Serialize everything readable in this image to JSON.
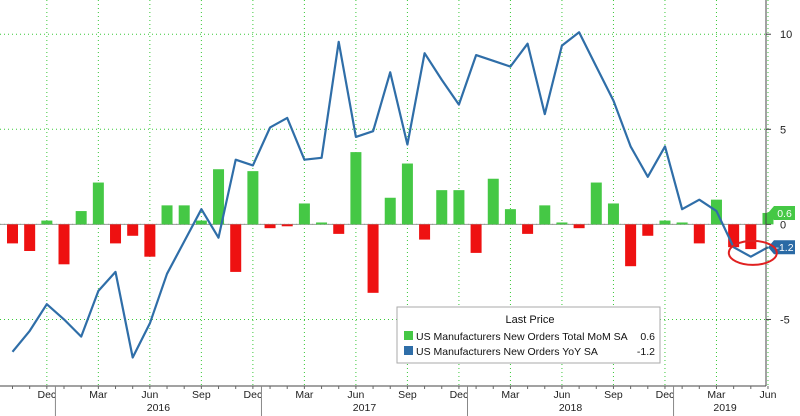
{
  "chart_data": {
    "type": "bar+line",
    "x": [
      "2015-10",
      "2015-11",
      "2015-12",
      "2016-01",
      "2016-02",
      "2016-03",
      "2016-04",
      "2016-05",
      "2016-06",
      "2016-07",
      "2016-08",
      "2016-09",
      "2016-10",
      "2016-11",
      "2016-12",
      "2017-01",
      "2017-02",
      "2017-03",
      "2017-04",
      "2017-05",
      "2017-06",
      "2017-07",
      "2017-08",
      "2017-09",
      "2017-10",
      "2017-11",
      "2017-12",
      "2018-01",
      "2018-02",
      "2018-03",
      "2018-04",
      "2018-05",
      "2018-06",
      "2018-07",
      "2018-08",
      "2018-09",
      "2018-10",
      "2018-11",
      "2018-12",
      "2019-01",
      "2019-02",
      "2019-03",
      "2019-04",
      "2019-05",
      "2019-06"
    ],
    "series": [
      {
        "name": "US Manufacturers New Orders Total MoM SA",
        "type": "bar",
        "values": [
          -1.0,
          -1.4,
          0.2,
          -2.1,
          0.7,
          2.2,
          -1.0,
          -0.6,
          -1.7,
          1.0,
          1.0,
          0.2,
          2.9,
          -2.5,
          2.8,
          -0.2,
          -0.1,
          1.1,
          0.1,
          -0.5,
          3.8,
          -3.6,
          1.4,
          3.2,
          -0.8,
          1.8,
          1.8,
          -1.5,
          2.4,
          0.8,
          -0.5,
          1.0,
          0.1,
          -0.2,
          2.2,
          1.1,
          -2.2,
          -0.6,
          0.2,
          0.1,
          -1.0,
          1.3,
          -1.2,
          -1.3,
          0.6
        ]
      },
      {
        "name": "US Manufacturers New Orders YoY SA",
        "type": "line",
        "values": [
          -6.7,
          -5.6,
          -4.2,
          -5.0,
          -5.9,
          -3.5,
          -2.5,
          -7.0,
          -5.2,
          -2.6,
          -0.9,
          0.8,
          -0.7,
          3.4,
          3.1,
          5.1,
          5.6,
          3.4,
          3.5,
          9.6,
          4.6,
          4.9,
          8.0,
          4.2,
          9.0,
          7.6,
          6.3,
          8.9,
          8.6,
          8.3,
          9.5,
          5.8,
          9.4,
          10.1,
          8.3,
          6.5,
          4.1,
          2.5,
          4.1,
          0.8,
          1.3,
          0.7,
          -1.2,
          -1.7,
          -1.2
        ]
      }
    ],
    "ylim": [
      -8.5,
      11.8
    ],
    "yticks": [
      10,
      5,
      0,
      -5
    ],
    "ytick_labels": [
      "10",
      "5",
      "0",
      "-5"
    ],
    "month_labels": [
      "Dec",
      "Mar",
      "Jun",
      "Sep",
      "Dec",
      "Mar",
      "Jun",
      "Sep",
      "Dec",
      "Mar",
      "Jun",
      "Sep",
      "Dec",
      "Mar",
      "Jun"
    ],
    "year_labels": [
      "2016",
      "2017",
      "2018",
      "2019"
    ],
    "grid": true,
    "legend": {
      "placement": "bottom-right",
      "title": "Last Price",
      "entries": [
        {
          "label": "US Manufacturers New Orders Total MoM SA",
          "value": "0.6",
          "color": "#45c845"
        },
        {
          "label": "US Manufacturers New Orders YoY SA",
          "value": "-1.2",
          "color": "#2f6ea8"
        }
      ]
    },
    "last_value_tags": [
      {
        "value": "0.6",
        "color": "#45c845"
      },
      {
        "value": "-1.2",
        "color": "#2a6aa5"
      }
    ],
    "annotation": "red circle highlighting latest YoY value",
    "colors": {
      "bar_positive": "#45c845",
      "bar_negative": "#ee1111",
      "line": "#2f6ea8",
      "grid": "#39c839",
      "year_separator": "#888888",
      "annotation": "#e02020"
    }
  }
}
